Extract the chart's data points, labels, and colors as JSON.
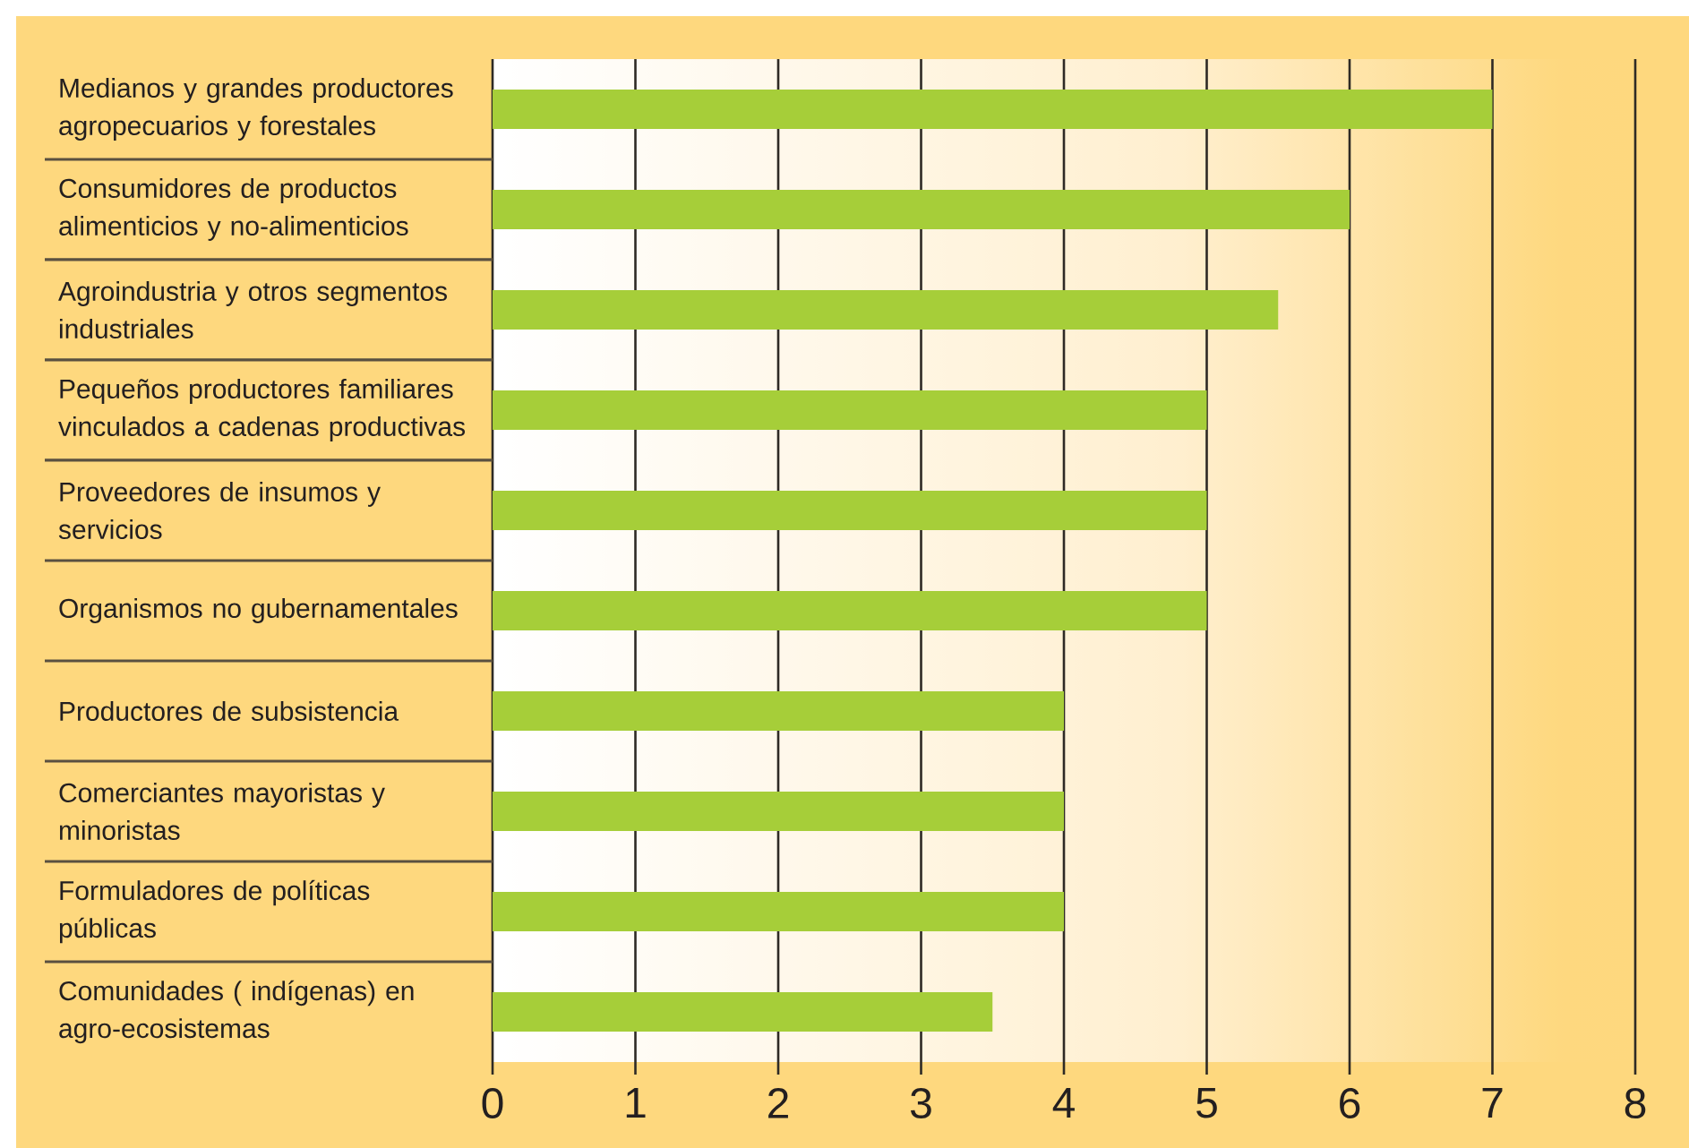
{
  "chart_data": {
    "type": "bar",
    "orientation": "horizontal",
    "categories": [
      "Medianos y grandes productores agropecuarios y forestales",
      "Consumidores de productos alimenticios y no-alimenticios",
      "Agroindustria y otros segmentos industriales",
      "Pequeños productores familiares vinculados a cadenas productivas",
      "Proveedores de insumos y servicios",
      "Organismos no gubernamentales",
      "Productores de subsistencia",
      "Comerciantes mayoristas y minoristas",
      "Formuladores de políticas públicas",
      "Comunidades ( indígenas) en agro-ecosistemas"
    ],
    "values": [
      7,
      6,
      5.5,
      5,
      5,
      5,
      4,
      4,
      4,
      3.5
    ],
    "color": "#a6ce39",
    "xlim": [
      0,
      8
    ],
    "xticks": [
      0,
      1,
      2,
      3,
      4,
      5,
      6,
      7,
      8
    ],
    "grid": "x"
  }
}
